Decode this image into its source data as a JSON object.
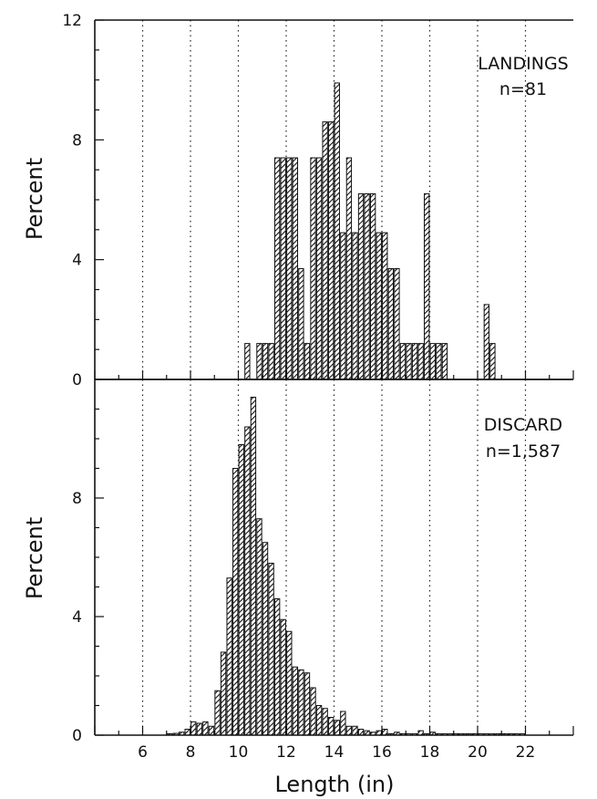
{
  "chart_data": [
    {
      "type": "bar",
      "panel": "top",
      "annotation": {
        "label": "LANDINGS",
        "count": "n=81"
      },
      "ylabel": "Percent",
      "xlabel": "",
      "ylim": [
        0,
        12
      ],
      "xlim": [
        4,
        24
      ],
      "yticks": [
        "0",
        "4",
        "8",
        "12"
      ],
      "xticks": [
        "6",
        "8",
        "10",
        "12",
        "14",
        "16",
        "18",
        "20",
        "22"
      ],
      "bin_width": 0.25,
      "grid": "vertical dotted",
      "x": [
        10.25,
        10.75,
        11.0,
        11.25,
        11.5,
        11.75,
        12.0,
        12.25,
        12.5,
        12.75,
        13.0,
        13.25,
        13.5,
        13.75,
        14.0,
        14.25,
        14.5,
        14.75,
        15.0,
        15.25,
        15.5,
        15.75,
        16.0,
        16.25,
        16.5,
        16.75,
        17.0,
        17.25,
        17.5,
        17.75,
        18.0,
        18.25,
        18.5,
        20.25,
        20.5
      ],
      "values": [
        1.2,
        1.2,
        1.2,
        1.2,
        7.4,
        7.4,
        7.4,
        7.4,
        3.7,
        1.2,
        7.4,
        7.4,
        8.6,
        8.6,
        9.9,
        4.9,
        7.4,
        4.9,
        6.2,
        6.2,
        6.2,
        4.9,
        4.9,
        3.7,
        3.7,
        1.2,
        1.2,
        1.2,
        1.2,
        6.2,
        1.2,
        1.2,
        1.2,
        2.5,
        1.2
      ]
    },
    {
      "type": "bar",
      "panel": "bottom",
      "annotation": {
        "label": "DISCARD",
        "count": "n=1,587"
      },
      "ylabel": "Percent",
      "xlabel": "Length (in)",
      "ylim": [
        0,
        12
      ],
      "xlim": [
        4,
        24
      ],
      "yticks": [
        "0",
        "4",
        "8"
      ],
      "xticks": [
        "6",
        "8",
        "10",
        "12",
        "14",
        "16",
        "18",
        "20",
        "22"
      ],
      "bin_width": 0.25,
      "grid": "vertical dotted",
      "x": [
        7.0,
        7.25,
        7.5,
        7.75,
        8.0,
        8.25,
        8.5,
        8.75,
        9.0,
        9.25,
        9.5,
        9.75,
        10.0,
        10.25,
        10.5,
        10.75,
        11.0,
        11.25,
        11.5,
        11.75,
        12.0,
        12.25,
        12.5,
        12.75,
        13.0,
        13.25,
        13.5,
        13.75,
        14.0,
        14.25,
        14.5,
        14.75,
        15.0,
        15.25,
        15.5,
        15.75,
        16.0,
        16.25,
        16.5,
        16.75,
        17.0,
        17.25,
        17.5,
        17.75,
        18.0,
        18.25,
        18.5,
        18.75,
        19.0,
        19.25,
        19.5,
        19.75,
        20.0,
        20.25,
        20.5,
        20.75,
        21.0,
        21.25,
        21.5,
        21.75
      ],
      "values": [
        0.05,
        0.06,
        0.1,
        0.2,
        0.45,
        0.4,
        0.45,
        0.3,
        1.5,
        2.8,
        5.3,
        9.0,
        9.8,
        10.4,
        11.4,
        7.3,
        6.5,
        5.8,
        4.6,
        3.9,
        3.5,
        2.3,
        2.2,
        2.1,
        1.6,
        1.0,
        0.9,
        0.6,
        0.5,
        0.8,
        0.3,
        0.3,
        0.2,
        0.15,
        0.1,
        0.15,
        0.2,
        0.05,
        0.1,
        0.05,
        0.05,
        0.05,
        0.15,
        0.05,
        0.1,
        0.05,
        0.05,
        0.05,
        0.05,
        0.05,
        0.05,
        0.05,
        0.05,
        0.05,
        0.05,
        0.05,
        0.05,
        0.05,
        0.05,
        0.05
      ]
    }
  ]
}
